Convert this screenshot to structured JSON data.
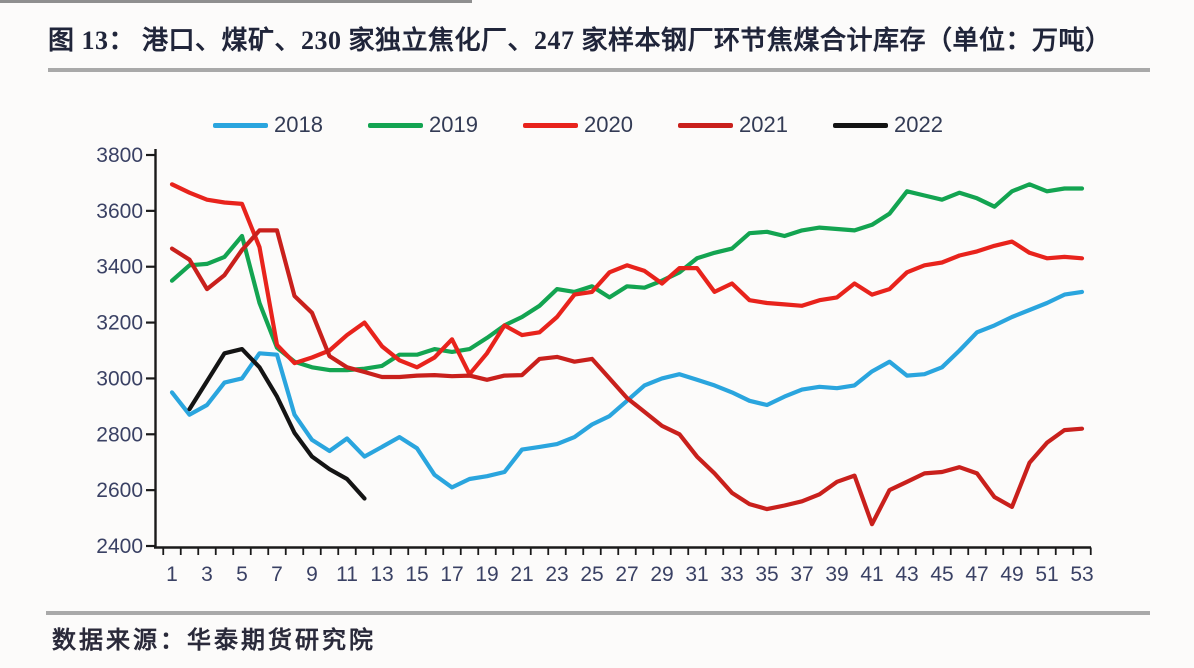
{
  "title": "图 13：  港口、煤矿、230 家独立焦化厂、247 家样本钢厂环节焦煤合计库存（单位：万吨）",
  "source": "数据来源：华泰期货研究院",
  "colors": {
    "axis": "#1a1a1a",
    "tick_label": "#3a4164",
    "legend_label": "#333b55",
    "title_text": "#20253a",
    "rule_gray": "#a9a9a9",
    "background": "#fcfbfa"
  },
  "chart_data": {
    "type": "line",
    "title": "港口、煤矿、230家独立焦化厂、247家样本钢厂环节焦煤合计库存",
    "unit": "万吨",
    "xlabel": "",
    "ylabel": "",
    "xlim": [
      1,
      53
    ],
    "ylim": [
      2400,
      3800
    ],
    "ytick_step": 200,
    "grid": false,
    "legend_position": "top",
    "x_tick_labels": [
      1,
      3,
      5,
      7,
      9,
      11,
      13,
      15,
      17,
      19,
      21,
      23,
      25,
      27,
      29,
      31,
      33,
      35,
      37,
      39,
      41,
      43,
      45,
      47,
      49,
      51,
      53
    ],
    "y_tick_labels": [
      2400,
      2600,
      2800,
      3000,
      3200,
      3400,
      3600,
      3800
    ],
    "series": [
      {
        "name": "2018",
        "color": "#2aa5de",
        "start_week": 1,
        "values": [
          2950,
          2870,
          2905,
          2985,
          3000,
          3090,
          3085,
          2870,
          2780,
          2740,
          2785,
          2720,
          2755,
          2790,
          2750,
          2655,
          2610,
          2640,
          2650,
          2665,
          2745,
          2755,
          2765,
          2790,
          2835,
          2865,
          2920,
          2975,
          3000,
          3015,
          2995,
          2975,
          2950,
          2920,
          2905,
          2935,
          2960,
          2970,
          2965,
          2975,
          3025,
          3060,
          3010,
          3015,
          3040,
          3100,
          3165,
          3190,
          3220,
          3245,
          3270,
          3300,
          3310
        ]
      },
      {
        "name": "2019",
        "color": "#13a451",
        "start_week": 1,
        "values": [
          3350,
          3405,
          3410,
          3435,
          3510,
          3270,
          3110,
          3060,
          3040,
          3030,
          3030,
          3035,
          3045,
          3085,
          3085,
          3105,
          3095,
          3105,
          3145,
          3190,
          3220,
          3260,
          3320,
          3310,
          3330,
          3290,
          3330,
          3325,
          3350,
          3380,
          3430,
          3450,
          3465,
          3520,
          3525,
          3510,
          3530,
          3540,
          3535,
          3530,
          3550,
          3590,
          3670,
          3655,
          3640,
          3665,
          3645,
          3615,
          3670,
          3695,
          3670,
          3680,
          3680
        ]
      },
      {
        "name": "2020",
        "color": "#e8231c",
        "start_week": 1,
        "values": [
          3695,
          3665,
          3640,
          3630,
          3625,
          3470,
          3120,
          3055,
          3075,
          3100,
          3155,
          3200,
          3115,
          3065,
          3040,
          3075,
          3140,
          3015,
          3090,
          3190,
          3155,
          3165,
          3220,
          3300,
          3310,
          3380,
          3405,
          3385,
          3340,
          3395,
          3395,
          3310,
          3340,
          3280,
          3270,
          3265,
          3260,
          3280,
          3290,
          3340,
          3300,
          3320,
          3380,
          3405,
          3415,
          3440,
          3455,
          3475,
          3490,
          3450,
          3430,
          3435,
          3430
        ]
      },
      {
        "name": "2021",
        "color": "#c9201c",
        "start_week": 1,
        "values": [
          3465,
          3425,
          3320,
          3370,
          3460,
          3530,
          3530,
          3295,
          3235,
          3080,
          3040,
          3023,
          3005,
          3005,
          3010,
          3012,
          3008,
          3010,
          2995,
          3010,
          3012,
          3070,
          3077,
          3060,
          3070,
          3000,
          2930,
          2880,
          2830,
          2800,
          2720,
          2660,
          2590,
          2550,
          2532,
          2545,
          2560,
          2585,
          2630,
          2652,
          2478,
          2600,
          2630,
          2660,
          2665,
          2682,
          2660,
          2575,
          2540,
          2698,
          2770,
          2815,
          2820
        ]
      },
      {
        "name": "2022",
        "color": "#141414",
        "start_week": 2,
        "values": [
          2890,
          2990,
          3090,
          3105,
          3040,
          2935,
          2805,
          2720,
          2675,
          2640,
          2570
        ]
      }
    ]
  }
}
